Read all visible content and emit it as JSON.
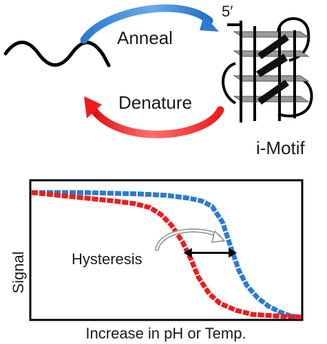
{
  "top_panel": {
    "anneal_label": "Anneal",
    "denature_label": "Denature",
    "five_prime_label": "5′",
    "structure_label": "i-Motif"
  },
  "chart_data": {
    "type": "line",
    "title": "",
    "xlabel": "Increase in pH or Temp.",
    "ylabel": "Signal",
    "xlim": [
      0,
      100
    ],
    "ylim": [
      0,
      100
    ],
    "grid": false,
    "annotation": "Hysteresis",
    "series": [
      {
        "name": "anneal (blue)",
        "color": "#2b7bd0",
        "x": [
          0,
          20,
          40,
          50,
          58,
          63,
          67,
          71,
          74,
          77,
          80,
          84,
          88,
          92,
          96,
          100
        ],
        "y": [
          92,
          92,
          91,
          90,
          88,
          86,
          82,
          70,
          52,
          35,
          24,
          15,
          9,
          5,
          2,
          1
        ]
      },
      {
        "name": "denature (red)",
        "color": "#ee1c1c",
        "x": [
          0,
          10,
          20,
          30,
          38,
          44,
          48,
          52,
          56,
          59,
          62,
          66,
          70,
          76,
          82,
          90,
          100
        ],
        "y": [
          92,
          90,
          88,
          86,
          84,
          81,
          76,
          68,
          56,
          44,
          30,
          18,
          11,
          6,
          3,
          2,
          1
        ]
      }
    ],
    "hysteresis_arrow_y": 48
  },
  "colors": {
    "blue": "#2b7bd0",
    "red": "#ee1c1c",
    "gray_plate": "#9a9a9a"
  }
}
